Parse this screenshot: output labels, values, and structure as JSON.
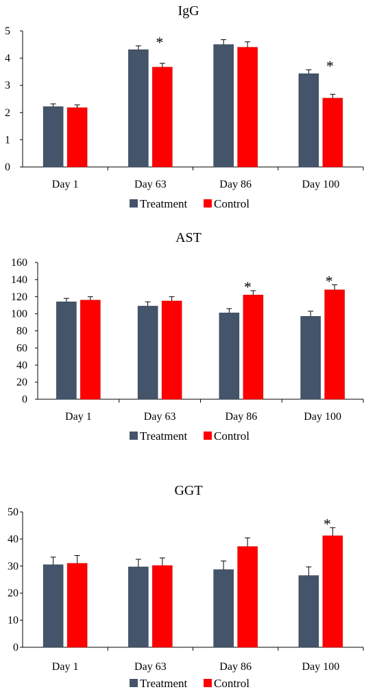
{
  "colors": {
    "treatment": "#44546a",
    "control": "#ff0000"
  },
  "chart_data": [
    {
      "type": "bar",
      "title": "IgG",
      "categories": [
        "Day 1",
        "Day 63",
        "Day 86",
        "Day 100"
      ],
      "ylim": [
        0,
        5
      ],
      "yticks": [
        "0",
        "1",
        "2",
        "3",
        "4",
        "5"
      ],
      "series": [
        {
          "name": "Treatment",
          "values": [
            2.22,
            4.31,
            4.5,
            3.43
          ],
          "errors": [
            0.1,
            0.14,
            0.18,
            0.14
          ]
        },
        {
          "name": "Control",
          "values": [
            2.18,
            3.67,
            4.4,
            2.53
          ],
          "errors": [
            0.1,
            0.14,
            0.2,
            0.14
          ]
        }
      ],
      "annotations": [
        {
          "category": "Day 63",
          "text": "*"
        },
        {
          "category": "Day 100",
          "text": "*"
        }
      ],
      "legend": "bottom",
      "grid": false
    },
    {
      "type": "bar",
      "title": "AST",
      "categories": [
        "Day 1",
        "Day 63",
        "Day 86",
        "Day 100"
      ],
      "ylim": [
        0,
        160
      ],
      "yticks": [
        "0",
        "20",
        "40",
        "60",
        "80",
        "100",
        "120",
        "140",
        "160"
      ],
      "series": [
        {
          "name": "Treatment",
          "values": [
            114,
            109,
            101,
            97
          ],
          "errors": [
            4,
            5,
            5,
            6
          ]
        },
        {
          "name": "Control",
          "values": [
            116,
            115,
            122,
            128
          ],
          "errors": [
            4,
            5,
            5,
            6
          ]
        }
      ],
      "annotations": [
        {
          "category": "Day 86",
          "text": "*"
        },
        {
          "category": "Day 100",
          "text": "*"
        }
      ],
      "legend": "bottom",
      "grid": false
    },
    {
      "type": "bar",
      "title": "GGT",
      "categories": [
        "Day 1",
        "Day 63",
        "Day 86",
        "Day 100"
      ],
      "ylim": [
        0,
        50
      ],
      "yticks": [
        "0",
        "10",
        "20",
        "30",
        "40",
        "50"
      ],
      "series": [
        {
          "name": "Treatment",
          "values": [
            30.5,
            29.7,
            28.7,
            26.5
          ],
          "errors": [
            2.8,
            2.8,
            3.2,
            3.2
          ]
        },
        {
          "name": "Control",
          "values": [
            31.0,
            30.2,
            37.2,
            41.2
          ],
          "errors": [
            2.9,
            2.8,
            3.2,
            3.0
          ]
        }
      ],
      "annotations": [
        {
          "category": "Day 100",
          "text": "*"
        }
      ],
      "legend": "bottom",
      "grid": false
    }
  ]
}
